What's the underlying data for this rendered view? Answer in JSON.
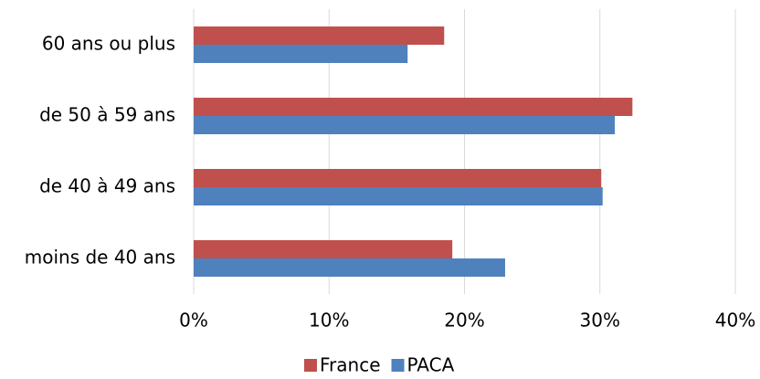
{
  "chart_data": {
    "type": "bar",
    "orientation": "horizontal",
    "categories": [
      "60 ans ou plus",
      "de 50 à 59 ans",
      "de 40 à 49 ans",
      "moins de 40 ans"
    ],
    "series": [
      {
        "name": "France",
        "color": "#c0504d",
        "values": [
          18.5,
          32.4,
          30.1,
          19.1
        ]
      },
      {
        "name": "PACA",
        "color": "#4f81bd",
        "values": [
          15.8,
          31.1,
          30.2,
          23.0
        ]
      }
    ],
    "xlim": [
      0,
      40
    ],
    "xticks": [
      {
        "value": 0,
        "label": "0%"
      },
      {
        "value": 10,
        "label": "10%"
      },
      {
        "value": 20,
        "label": "20%"
      },
      {
        "value": 30,
        "label": "30%"
      },
      {
        "value": 40,
        "label": "40%"
      }
    ],
    "grid": true,
    "legend": "bottom"
  }
}
